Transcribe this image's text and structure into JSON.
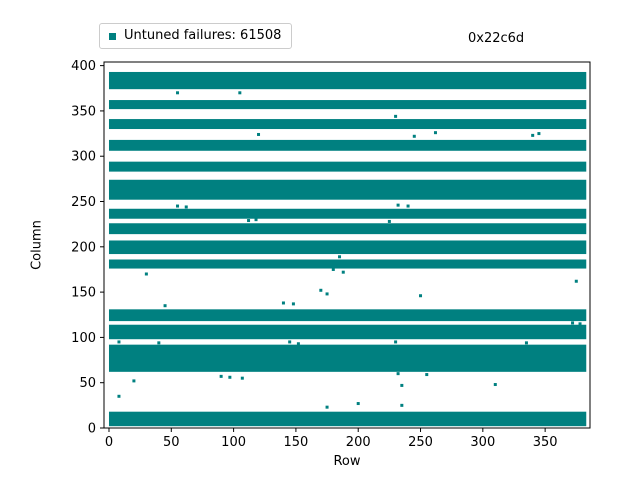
{
  "figure": {
    "legend_label": "Untuned failures: 61508",
    "annotation_text": "0x22c6d"
  },
  "chart_data": {
    "type": "scatter",
    "title": "",
    "xlabel": "Row",
    "ylabel": "Column",
    "legend": {
      "label": "Untuned failures: 61508",
      "loc": "upper left outside"
    },
    "annotation": {
      "text": "0x22c6d",
      "loc": "upper right"
    },
    "marker": "square",
    "color": "#008080",
    "grid": false,
    "xlim": [
      -4,
      386
    ],
    "ylim": [
      0,
      404
    ],
    "xticks": [
      0,
      50,
      100,
      150,
      200,
      250,
      300,
      350
    ],
    "yticks": [
      0,
      50,
      100,
      150,
      200,
      250,
      300,
      350,
      400
    ],
    "bands_note": "fully-failing column ranges drawn as solid horizontal bars spanning rows 0-383",
    "bands": [
      {
        "x0": 0,
        "x1": 383,
        "y0": 2,
        "y1": 18
      },
      {
        "x0": 0,
        "x1": 383,
        "y0": 62,
        "y1": 92
      },
      {
        "x0": 0,
        "x1": 383,
        "y0": 98,
        "y1": 114
      },
      {
        "x0": 0,
        "x1": 383,
        "y0": 118,
        "y1": 131
      },
      {
        "x0": 0,
        "x1": 383,
        "y0": 176,
        "y1": 186
      },
      {
        "x0": 0,
        "x1": 383,
        "y0": 192,
        "y1": 207
      },
      {
        "x0": 0,
        "x1": 383,
        "y0": 214,
        "y1": 226
      },
      {
        "x0": 0,
        "x1": 383,
        "y0": 231,
        "y1": 242
      },
      {
        "x0": 0,
        "x1": 383,
        "y0": 252,
        "y1": 274
      },
      {
        "x0": 0,
        "x1": 383,
        "y0": 283,
        "y1": 294
      },
      {
        "x0": 0,
        "x1": 383,
        "y0": 306,
        "y1": 318
      },
      {
        "x0": 0,
        "x1": 383,
        "y0": 330,
        "y1": 341
      },
      {
        "x0": 0,
        "x1": 383,
        "y0": 352,
        "y1": 362
      },
      {
        "x0": 0,
        "x1": 383,
        "y0": 374,
        "y1": 393
      }
    ],
    "points": [
      [
        8,
        35
      ],
      [
        8,
        95
      ],
      [
        20,
        52
      ],
      [
        30,
        170
      ],
      [
        40,
        94
      ],
      [
        45,
        135
      ],
      [
        55,
        370
      ],
      [
        55,
        245
      ],
      [
        62,
        244
      ],
      [
        90,
        57
      ],
      [
        97,
        56
      ],
      [
        105,
        370
      ],
      [
        107,
        55
      ],
      [
        112,
        229
      ],
      [
        118,
        230
      ],
      [
        120,
        324
      ],
      [
        140,
        138
      ],
      [
        148,
        137
      ],
      [
        145,
        95
      ],
      [
        152,
        93
      ],
      [
        170,
        152
      ],
      [
        175,
        148
      ],
      [
        175,
        23
      ],
      [
        180,
        175
      ],
      [
        185,
        189
      ],
      [
        188,
        172
      ],
      [
        200,
        27
      ],
      [
        225,
        228
      ],
      [
        230,
        344
      ],
      [
        230,
        95
      ],
      [
        232,
        246
      ],
      [
        232,
        60
      ],
      [
        235,
        47
      ],
      [
        235,
        25
      ],
      [
        240,
        245
      ],
      [
        245,
        322
      ],
      [
        250,
        146
      ],
      [
        255,
        59
      ],
      [
        262,
        326
      ],
      [
        310,
        48
      ],
      [
        335,
        94
      ],
      [
        340,
        323
      ],
      [
        345,
        325
      ],
      [
        372,
        116
      ],
      [
        378,
        115
      ],
      [
        375,
        162
      ]
    ]
  }
}
